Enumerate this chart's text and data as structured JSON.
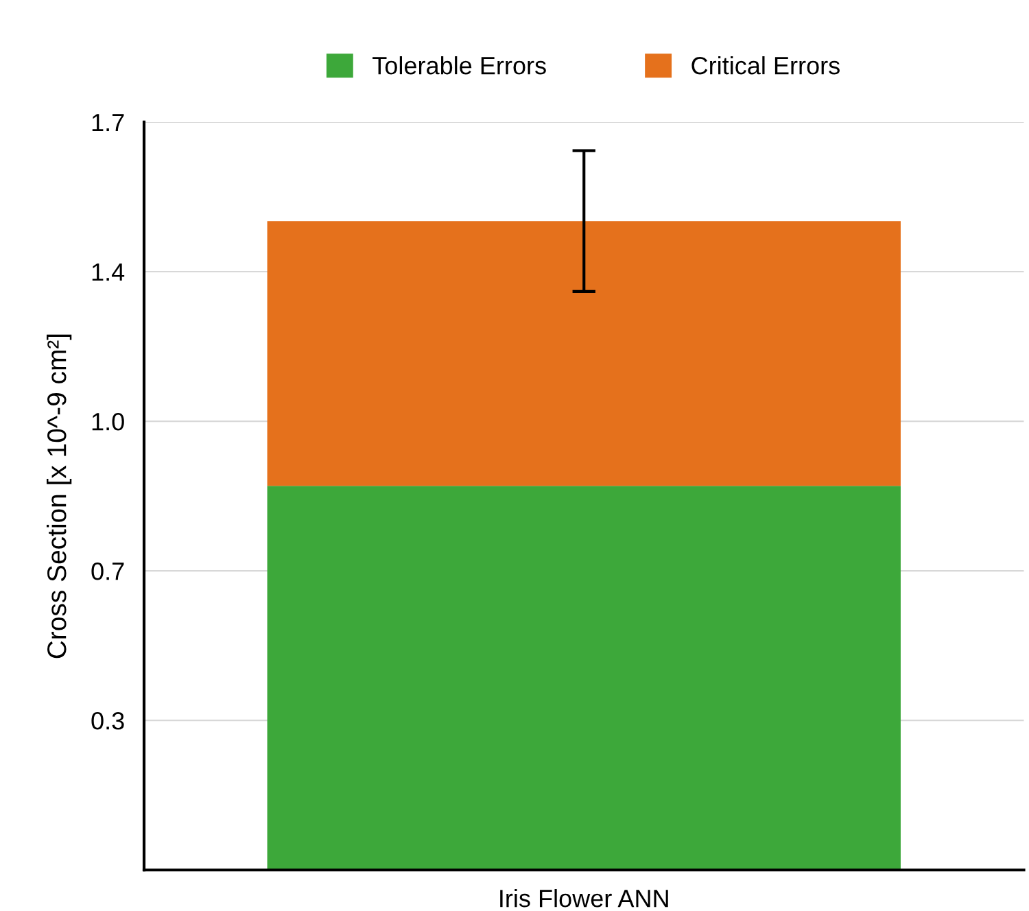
{
  "chart_data": {
    "type": "bar",
    "stacked": true,
    "ylabel": "Cross Section [x 10^-9 cm²]",
    "categories": [
      "Iris Flower ANN"
    ],
    "series": [
      {
        "name": "Tolerable Errors",
        "color": "#3da83a",
        "values": [
          0.873
        ]
      },
      {
        "name": "Critical Errors",
        "color": "#e5711c",
        "values": [
          0.602
        ],
        "errors": [
          0.16
        ]
      }
    ],
    "ylim": [
      0,
      1.7
    ],
    "yticks": [
      {
        "value": 0.34,
        "label": "0.3"
      },
      {
        "value": 0.68,
        "label": "0.7"
      },
      {
        "value": 1.02,
        "label": "1.0"
      },
      {
        "value": 1.36,
        "label": "1.4"
      },
      {
        "value": 1.7,
        "label": "1.7"
      }
    ],
    "grid": "y",
    "legend": "top"
  }
}
